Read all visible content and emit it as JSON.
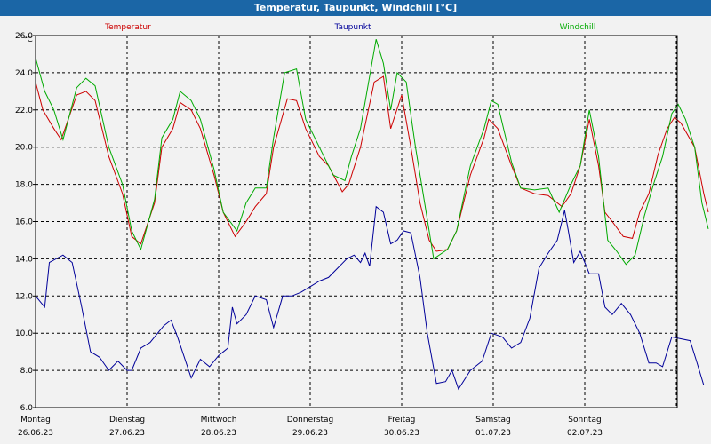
{
  "window": {
    "title": "Temperatur, Taupunkt, Windchill [°C]"
  },
  "chart_data": {
    "type": "line",
    "title": "Temperatur, Taupunkt, Windchill [°C]",
    "ylabel": "°C",
    "ylim": [
      6,
      26
    ],
    "yticks": [
      "6.0",
      "8.0",
      "10.0",
      "12.0",
      "14.0",
      "16.0",
      "18.0",
      "20.0",
      "22.0",
      "24.0",
      "26.0"
    ],
    "xlim": [
      0,
      7
    ],
    "days": [
      {
        "name": "Montag",
        "date": "26.06.23"
      },
      {
        "name": "Dienstag",
        "date": "27.06.23"
      },
      {
        "name": "Mittwoch",
        "date": "28.06.23"
      },
      {
        "name": "Donnerstag",
        "date": "29.06.23"
      },
      {
        "name": "Freitag",
        "date": "30.06.23"
      },
      {
        "name": "Samstag",
        "date": "01.07.23"
      },
      {
        "name": "Sonntag",
        "date": "02.07.23"
      }
    ],
    "grid": true,
    "series": [
      {
        "name": "Temperatur",
        "color": "#cc0000",
        "points": [
          [
            0,
            23.5
          ],
          [
            0.08,
            22
          ],
          [
            0.2,
            21
          ],
          [
            0.28,
            20.4
          ],
          [
            0.45,
            22.8
          ],
          [
            0.55,
            23
          ],
          [
            0.65,
            22.5
          ],
          [
            0.8,
            19.5
          ],
          [
            0.95,
            17.5
          ],
          [
            1.05,
            15.2
          ],
          [
            1.15,
            14.8
          ],
          [
            1.3,
            17
          ],
          [
            1.38,
            20
          ],
          [
            1.5,
            21
          ],
          [
            1.58,
            22.4
          ],
          [
            1.7,
            22
          ],
          [
            1.8,
            21
          ],
          [
            1.95,
            18.5
          ],
          [
            2.05,
            16.5
          ],
          [
            2.18,
            15.2
          ],
          [
            2.3,
            16
          ],
          [
            2.4,
            16.8
          ],
          [
            2.52,
            17.5
          ],
          [
            2.6,
            20
          ],
          [
            2.75,
            22.6
          ],
          [
            2.85,
            22.5
          ],
          [
            2.95,
            21
          ],
          [
            3.1,
            19.5
          ],
          [
            3.2,
            19
          ],
          [
            3.35,
            17.6
          ],
          [
            3.42,
            18
          ],
          [
            3.55,
            20
          ],
          [
            3.7,
            23.5
          ],
          [
            3.8,
            23.8
          ],
          [
            3.88,
            21
          ],
          [
            4.0,
            22.8
          ],
          [
            4.1,
            20
          ],
          [
            4.2,
            17
          ],
          [
            4.3,
            15
          ],
          [
            4.38,
            14.4
          ],
          [
            4.5,
            14.5
          ],
          [
            4.6,
            15.5
          ],
          [
            4.75,
            18.5
          ],
          [
            4.9,
            20.5
          ],
          [
            4.95,
            21.5
          ],
          [
            5.05,
            21
          ],
          [
            5.2,
            19
          ],
          [
            5.3,
            17.8
          ],
          [
            5.45,
            17.5
          ],
          [
            5.6,
            17.4
          ],
          [
            5.75,
            16.8
          ],
          [
            5.85,
            17.5
          ],
          [
            5.95,
            19
          ],
          [
            6.05,
            21.5
          ],
          [
            6.15,
            19
          ],
          [
            6.22,
            16.5
          ],
          [
            6.3,
            16
          ],
          [
            6.42,
            15.2
          ],
          [
            6.52,
            15.1
          ],
          [
            6.6,
            16.5
          ],
          [
            6.7,
            17.5
          ],
          [
            6.8,
            19.6
          ],
          [
            6.9,
            21
          ],
          [
            6.98,
            21.6
          ],
          [
            7.05,
            21.3
          ],
          [
            7.2,
            20
          ],
          [
            7.3,
            17.5
          ],
          [
            7.35,
            16.5
          ]
        ]
      },
      {
        "name": "Taupunkt",
        "color": "#000099",
        "points": [
          [
            0,
            12
          ],
          [
            0.1,
            11.4
          ],
          [
            0.15,
            13.8
          ],
          [
            0.3,
            14.2
          ],
          [
            0.4,
            13.8
          ],
          [
            0.5,
            11.5
          ],
          [
            0.6,
            9
          ],
          [
            0.7,
            8.7
          ],
          [
            0.8,
            8
          ],
          [
            0.9,
            8.5
          ],
          [
            1.0,
            8
          ],
          [
            1.05,
            8
          ],
          [
            1.15,
            9.2
          ],
          [
            1.25,
            9.5
          ],
          [
            1.4,
            10.4
          ],
          [
            1.48,
            10.7
          ],
          [
            1.55,
            9.8
          ],
          [
            1.7,
            7.6
          ],
          [
            1.8,
            8.6
          ],
          [
            1.9,
            8.2
          ],
          [
            2.0,
            8.8
          ],
          [
            2.1,
            9.2
          ],
          [
            2.15,
            11.4
          ],
          [
            2.2,
            10.5
          ],
          [
            2.3,
            11
          ],
          [
            2.4,
            12
          ],
          [
            2.52,
            11.8
          ],
          [
            2.6,
            10.3
          ],
          [
            2.7,
            12
          ],
          [
            2.8,
            12
          ],
          [
            2.9,
            12.2
          ],
          [
            3.0,
            12.5
          ],
          [
            3.1,
            12.8
          ],
          [
            3.2,
            13
          ],
          [
            3.3,
            13.5
          ],
          [
            3.4,
            14
          ],
          [
            3.48,
            14.2
          ],
          [
            3.55,
            13.8
          ],
          [
            3.6,
            14.3
          ],
          [
            3.65,
            13.6
          ],
          [
            3.72,
            16.8
          ],
          [
            3.8,
            16.5
          ],
          [
            3.88,
            14.8
          ],
          [
            3.95,
            15
          ],
          [
            4.02,
            15.5
          ],
          [
            4.1,
            15.4
          ],
          [
            4.2,
            13
          ],
          [
            4.28,
            10
          ],
          [
            4.38,
            7.3
          ],
          [
            4.48,
            7.4
          ],
          [
            4.55,
            8
          ],
          [
            4.62,
            7
          ],
          [
            4.75,
            8
          ],
          [
            4.88,
            8.5
          ],
          [
            4.98,
            10
          ],
          [
            5.1,
            9.8
          ],
          [
            5.2,
            9.2
          ],
          [
            5.3,
            9.5
          ],
          [
            5.4,
            10.8
          ],
          [
            5.5,
            13.5
          ],
          [
            5.6,
            14.3
          ],
          [
            5.7,
            15
          ],
          [
            5.78,
            16.6
          ],
          [
            5.82,
            15.5
          ],
          [
            5.88,
            13.8
          ],
          [
            5.95,
            14.4
          ],
          [
            6.05,
            13.2
          ],
          [
            6.15,
            13.2
          ],
          [
            6.22,
            11.4
          ],
          [
            6.3,
            11
          ],
          [
            6.4,
            11.6
          ],
          [
            6.5,
            11
          ],
          [
            6.6,
            10
          ],
          [
            6.7,
            8.4
          ],
          [
            6.78,
            8.4
          ],
          [
            6.85,
            8.2
          ],
          [
            6.95,
            9.8
          ],
          [
            7.05,
            9.7
          ],
          [
            7.15,
            9.6
          ],
          [
            7.22,
            8.5
          ],
          [
            7.3,
            7.2
          ]
        ]
      },
      {
        "name": "Windchill",
        "color": "#00aa00",
        "points": [
          [
            0,
            24.8
          ],
          [
            0.1,
            23
          ],
          [
            0.2,
            22
          ],
          [
            0.3,
            20.4
          ],
          [
            0.45,
            23.2
          ],
          [
            0.55,
            23.7
          ],
          [
            0.65,
            23.3
          ],
          [
            0.8,
            20
          ],
          [
            0.95,
            18
          ],
          [
            1.05,
            15.5
          ],
          [
            1.15,
            14.5
          ],
          [
            1.3,
            17.2
          ],
          [
            1.38,
            20.5
          ],
          [
            1.5,
            21.5
          ],
          [
            1.58,
            23
          ],
          [
            1.7,
            22.5
          ],
          [
            1.8,
            21.5
          ],
          [
            1.95,
            18.8
          ],
          [
            2.05,
            16.5
          ],
          [
            2.2,
            15.5
          ],
          [
            2.3,
            17
          ],
          [
            2.4,
            17.8
          ],
          [
            2.52,
            17.8
          ],
          [
            2.6,
            20.5
          ],
          [
            2.72,
            24
          ],
          [
            2.85,
            24.2
          ],
          [
            2.95,
            21.5
          ],
          [
            3.1,
            20
          ],
          [
            3.25,
            18.5
          ],
          [
            3.38,
            18.2
          ],
          [
            3.45,
            19.5
          ],
          [
            3.55,
            21
          ],
          [
            3.72,
            25.8
          ],
          [
            3.8,
            24.5
          ],
          [
            3.88,
            22
          ],
          [
            3.95,
            24
          ],
          [
            4.05,
            23.5
          ],
          [
            4.15,
            20
          ],
          [
            4.25,
            17
          ],
          [
            4.35,
            14
          ],
          [
            4.5,
            14.5
          ],
          [
            4.6,
            15.5
          ],
          [
            4.75,
            19
          ],
          [
            4.9,
            21
          ],
          [
            4.98,
            22.5
          ],
          [
            5.05,
            22.3
          ],
          [
            5.2,
            19.2
          ],
          [
            5.3,
            17.8
          ],
          [
            5.45,
            17.7
          ],
          [
            5.6,
            17.8
          ],
          [
            5.72,
            16.5
          ],
          [
            5.85,
            18
          ],
          [
            5.95,
            19
          ],
          [
            6.05,
            22
          ],
          [
            6.15,
            19.5
          ],
          [
            6.25,
            15
          ],
          [
            6.35,
            14.4
          ],
          [
            6.45,
            13.7
          ],
          [
            6.55,
            14.2
          ],
          [
            6.65,
            16.3
          ],
          [
            6.75,
            18
          ],
          [
            6.85,
            19.5
          ],
          [
            6.95,
            21.8
          ],
          [
            7.02,
            22.3
          ],
          [
            7.1,
            21.5
          ],
          [
            7.2,
            20
          ],
          [
            7.28,
            17
          ],
          [
            7.35,
            15.6
          ]
        ]
      }
    ]
  }
}
